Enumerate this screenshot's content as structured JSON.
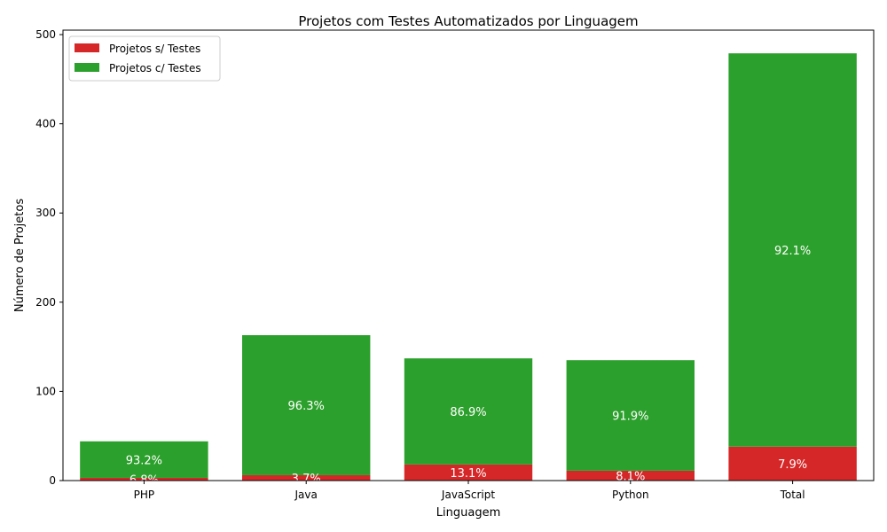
{
  "chart_data": {
    "type": "bar",
    "stacked": true,
    "title": "Projetos com Testes Automatizados por Linguagem",
    "xlabel": "Linguagem",
    "ylabel": "Número de Projetos",
    "categories": [
      "PHP",
      "Java",
      "JavaScript",
      "Python",
      "Total"
    ],
    "ylim": [
      0,
      505
    ],
    "yticks": [
      0,
      100,
      200,
      300,
      400,
      500
    ],
    "grid": false,
    "legend_position": "top-left",
    "series": [
      {
        "name": "Projetos s/ Testes",
        "color": "#d62728",
        "values": [
          3,
          6,
          18,
          11,
          38
        ],
        "labels": [
          "6.8%",
          "3.7%",
          "13.1%",
          "8.1%",
          "7.9%"
        ]
      },
      {
        "name": "Projetos c/ Testes",
        "color": "#2ca02c",
        "values": [
          41,
          157,
          119,
          124,
          441
        ],
        "labels": [
          "93.2%",
          "96.3%",
          "86.9%",
          "91.9%",
          "92.1%"
        ]
      }
    ]
  }
}
